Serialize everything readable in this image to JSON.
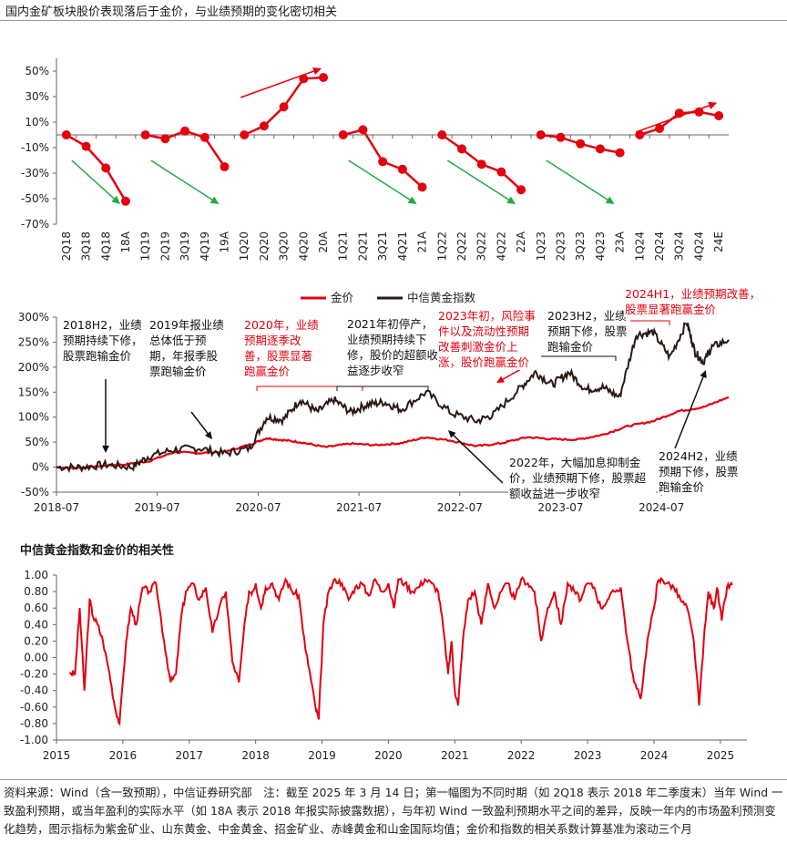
{
  "title": "国内金矿板块股价表现落后于金价，与业绩预期的变化密切相关",
  "colors": {
    "gold": "#e3000f",
    "index": "#2b1a14",
    "corr": "#e3000f",
    "up_arrow": "#e3000f",
    "down_arrow": "#22aa44",
    "axis": "#666666"
  },
  "chart_data": [
    {
      "type": "line",
      "yticks": [
        "50%",
        "30%",
        "10%",
        "-10%",
        "-30%",
        "-50%",
        "-70%"
      ],
      "ylim": [
        -0.7,
        0.6
      ],
      "categories": [
        "2Q18",
        "3Q18",
        "4Q18",
        "18A",
        "1Q19",
        "2Q19",
        "3Q19",
        "4Q19",
        "19A",
        "1Q20",
        "2Q20",
        "3Q20",
        "4Q20",
        "20A",
        "1Q21",
        "2Q21",
        "3Q21",
        "4Q21",
        "21A",
        "1Q22",
        "2Q22",
        "3Q22",
        "4Q22",
        "22A",
        "1Q23",
        "2Q23",
        "3Q23",
        "4Q23",
        "23A",
        "1Q24",
        "2Q24",
        "3Q24",
        "4Q24",
        "24E"
      ],
      "segments": [
        {
          "values": [
            0.0,
            -0.09,
            -0.26,
            -0.52
          ],
          "trend": "down"
        },
        {
          "values": [
            0.0,
            -0.03,
            0.03,
            -0.02,
            -0.25
          ],
          "trend": "down"
        },
        {
          "values": [
            0.0,
            0.07,
            0.22,
            0.44,
            0.45
          ],
          "trend": "up"
        },
        {
          "values": [
            0.0,
            0.04,
            -0.21,
            -0.27,
            -0.41
          ],
          "trend": "down"
        },
        {
          "values": [
            0.0,
            -0.11,
            -0.23,
            -0.29,
            -0.43
          ],
          "trend": "down"
        },
        {
          "values": [
            0.0,
            -0.02,
            -0.07,
            -0.11,
            -0.14
          ],
          "trend": "down"
        },
        {
          "values": [
            0.0,
            0.05,
            0.17,
            0.18,
            0.15
          ],
          "trend": "up"
        }
      ]
    },
    {
      "type": "line",
      "yticks": [
        "300%",
        "250%",
        "200%",
        "150%",
        "100%",
        "50%",
        "0%",
        "-50%"
      ],
      "ylim": [
        -0.5,
        3.0
      ],
      "xticks": [
        "2018-07",
        "2019-07",
        "2020-07",
        "2021-07",
        "2022-07",
        "2023-07",
        "2024-07"
      ],
      "x_range": [
        "2018-07",
        "2025-03"
      ],
      "series": [
        {
          "name": "金价",
          "key": "gold",
          "x": [
            "2018-07",
            "2018-09",
            "2018-12",
            "2019-03",
            "2019-06",
            "2019-09",
            "2019-12",
            "2020-03",
            "2020-06",
            "2020-08",
            "2020-10",
            "2020-12",
            "2021-03",
            "2021-06",
            "2021-09",
            "2021-12",
            "2022-03",
            "2022-06",
            "2022-09",
            "2022-12",
            "2023-03",
            "2023-06",
            "2023-09",
            "2023-12",
            "2024-03",
            "2024-06",
            "2024-09",
            "2024-12",
            "2025-03"
          ],
          "values": [
            0.0,
            -0.02,
            0.02,
            0.05,
            0.12,
            0.3,
            0.28,
            0.31,
            0.45,
            0.58,
            0.54,
            0.5,
            0.4,
            0.47,
            0.44,
            0.48,
            0.6,
            0.53,
            0.42,
            0.48,
            0.6,
            0.56,
            0.55,
            0.65,
            0.82,
            0.92,
            1.12,
            1.2,
            1.4
          ]
        },
        {
          "name": "中信黄金指数",
          "key": "index",
          "x": [
            "2018-07",
            "2018-10",
            "2019-01",
            "2019-04",
            "2019-06",
            "2019-09",
            "2019-12",
            "2020-03",
            "2020-06",
            "2020-08",
            "2020-10",
            "2020-12",
            "2021-02",
            "2021-04",
            "2021-06",
            "2021-08",
            "2021-10",
            "2021-12",
            "2022-03",
            "2022-06",
            "2022-09",
            "2022-11",
            "2023-02",
            "2023-04",
            "2023-06",
            "2023-08",
            "2023-10",
            "2023-12",
            "2024-02",
            "2024-04",
            "2024-06",
            "2024-08",
            "2024-10",
            "2024-11",
            "2024-12",
            "2025-01",
            "2025-03"
          ],
          "values": [
            0.0,
            0.0,
            0.05,
            0.0,
            0.22,
            0.35,
            0.38,
            0.27,
            0.38,
            1.0,
            0.95,
            1.35,
            1.1,
            1.35,
            1.1,
            1.25,
            1.3,
            1.15,
            1.5,
            1.08,
            0.92,
            1.05,
            1.55,
            1.9,
            1.65,
            1.9,
            1.55,
            1.6,
            1.4,
            2.65,
            2.7,
            2.2,
            2.9,
            2.3,
            2.1,
            2.4,
            2.55
          ]
        }
      ],
      "annotations": [
        {
          "text": "2018H2，业绩预期持续下修，股票跑输金价",
          "color": "black"
        },
        {
          "text": "2019年报业绩总体低于预期，年报季股票跑输金价",
          "color": "black"
        },
        {
          "text": "2020年，业绩预期逐季改善，股票显著跑赢金价",
          "color": "red"
        },
        {
          "text": "2021年初停产，业绩预期持续下修，股价的超额收益逐步收窄",
          "color": "black"
        },
        {
          "text": "2023年初，风险事件以及流动性预期改善刺激金价上涨，股价跑赢金价",
          "color": "red"
        },
        {
          "text": "2023H2，业绩预期下修，股票跑输金价",
          "color": "black"
        },
        {
          "text": "2024H1，业绩预期改善，股票显著跑赢金价",
          "color": "red"
        },
        {
          "text": "2022年，大幅加息抑制金价，业绩预期下修，股票超额收益进一步收窄",
          "color": "black"
        },
        {
          "text": "2024H2，业绩预期下修，股票跑输金价",
          "color": "black"
        }
      ]
    },
    {
      "type": "line",
      "title": "中信黄金指数和金价的相关性",
      "yticks": [
        "1.00",
        "0.80",
        "0.60",
        "0.40",
        "0.20",
        "0.00",
        "-0.20",
        "-0.40",
        "-0.60",
        "-0.80",
        "-1.00"
      ],
      "ylim": [
        -1.0,
        1.0
      ],
      "xticks": [
        "2015",
        "2016",
        "2017",
        "2018",
        "2019",
        "2020",
        "2021",
        "2022",
        "2023",
        "2024",
        "2025"
      ],
      "x_range": [
        2015.0,
        2025.4
      ],
      "series": [
        {
          "name": "",
          "key": "corr",
          "x": [
            2015.2,
            2015.28,
            2015.35,
            2015.42,
            2015.5,
            2015.55,
            2015.62,
            2015.7,
            2015.8,
            2015.88,
            2015.95,
            2016.05,
            2016.12,
            2016.2,
            2016.3,
            2016.4,
            2016.5,
            2016.62,
            2016.72,
            2016.8,
            2016.88,
            2016.95,
            2017.05,
            2017.15,
            2017.25,
            2017.35,
            2017.45,
            2017.55,
            2017.65,
            2017.75,
            2017.82,
            2017.9,
            2017.95,
            2018.0,
            2018.08,
            2018.15,
            2018.25,
            2018.35,
            2018.45,
            2018.55,
            2018.65,
            2018.75,
            2018.82,
            2018.9,
            2018.95,
            2019.02,
            2019.1,
            2019.2,
            2019.3,
            2019.4,
            2019.5,
            2019.6,
            2019.7,
            2019.8,
            2019.9,
            2020.0,
            2020.08,
            2020.15,
            2020.25,
            2020.35,
            2020.45,
            2020.55,
            2020.65,
            2020.75,
            2020.82,
            2020.9,
            2020.95,
            2021.0,
            2021.05,
            2021.12,
            2021.2,
            2021.3,
            2021.4,
            2021.5,
            2021.6,
            2021.7,
            2021.8,
            2021.9,
            2022.0,
            2022.1,
            2022.2,
            2022.3,
            2022.4,
            2022.5,
            2022.6,
            2022.7,
            2022.8,
            2022.9,
            2023.0,
            2023.1,
            2023.2,
            2023.3,
            2023.4,
            2023.5,
            2023.6,
            2023.7,
            2023.8,
            2023.9,
            2024.0,
            2024.05,
            2024.12,
            2024.2,
            2024.3,
            2024.4,
            2024.5,
            2024.6,
            2024.68,
            2024.75,
            2024.82,
            2024.9,
            2024.95,
            2025.02,
            2025.1,
            2025.18
          ],
          "values": [
            -0.18,
            -0.2,
            0.6,
            -0.4,
            0.7,
            0.5,
            0.4,
            0.2,
            -0.2,
            -0.6,
            -0.8,
            0.2,
            0.6,
            0.4,
            0.85,
            0.8,
            0.9,
            0.2,
            -0.3,
            -0.2,
            0.5,
            0.8,
            0.9,
            0.7,
            0.85,
            0.3,
            0.6,
            0.8,
            -0.05,
            -0.3,
            0.3,
            0.8,
            0.8,
            0.9,
            0.6,
            0.85,
            0.9,
            0.7,
            0.95,
            0.8,
            0.75,
            0.1,
            -0.2,
            -0.6,
            -0.75,
            0.4,
            0.8,
            0.95,
            0.9,
            0.7,
            0.85,
            0.9,
            0.75,
            0.95,
            0.8,
            0.9,
            0.6,
            0.95,
            0.9,
            0.8,
            0.85,
            0.95,
            0.9,
            0.8,
            0.4,
            -0.2,
            0.2,
            -0.4,
            -0.58,
            0.2,
            0.7,
            0.8,
            0.4,
            0.9,
            0.6,
            0.8,
            0.9,
            0.7,
            0.95,
            0.9,
            0.8,
            0.2,
            0.6,
            0.8,
            0.4,
            0.9,
            0.8,
            0.7,
            0.9,
            0.85,
            0.6,
            0.7,
            0.8,
            0.85,
            0.2,
            -0.3,
            -0.5,
            0.2,
            0.6,
            0.9,
            0.95,
            0.9,
            0.85,
            0.7,
            0.6,
            0.2,
            -0.58,
            0.2,
            0.8,
            0.6,
            0.85,
            0.45,
            0.85,
            0.88
          ]
        }
      ]
    }
  ],
  "footnote": "资料来源：Wind（含一致预期），中信证券研究部　注：截至 2025 年 3 月 14 日；第一幅图为不同时期（如 2Q18 表示 2018 年二季度末）当年 Wind 一致盈利预期，或当年盈利的实际水平（如 18A 表示 2018 年报实际披露数据），与年初 Wind 一致盈利预期水平之间的差异，反映一年内的市场盈利预测变化趋势，图示指标为紫金矿业、山东黄金、中金黄金、招金矿业、赤峰黄金和山金国际均值；金价和指数的相关系数计算基准为滚动三个月"
}
